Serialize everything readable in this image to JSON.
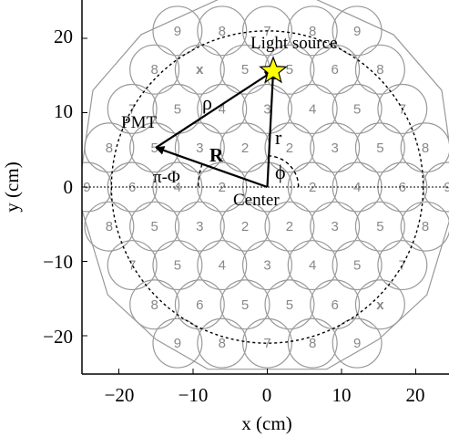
{
  "axes": {
    "xlabel": "x (cm)",
    "ylabel": "y (cm)",
    "xticks": [
      "−20",
      "−10",
      "0",
      "10",
      "20"
    ],
    "yticks": [
      "20",
      "10",
      "0",
      "−10",
      "−20"
    ]
  },
  "pmt_grid": {
    "pitch_cm": 7.0,
    "radius_cm": 3.3,
    "rows": [
      {
        "y": 21.0,
        "xs": [
          -12.1,
          -6.1,
          0.0,
          6.1,
          12.1
        ],
        "labels": [
          "9",
          "8",
          "7",
          "8",
          "9"
        ]
      },
      {
        "y": 15.8,
        "xs": [
          -15.2,
          -9.1,
          -3.0,
          3.0,
          9.1,
          15.2
        ],
        "labels": [
          "8",
          "x",
          "5",
          "5",
          "6",
          "8"
        ]
      },
      {
        "y": 10.5,
        "xs": [
          -18.2,
          -12.1,
          -6.1,
          0.0,
          6.1,
          12.1,
          18.2
        ],
        "labels": [
          "7",
          "5",
          "4",
          "3",
          "4",
          "5",
          "7"
        ]
      },
      {
        "y": 5.3,
        "xs": [
          -21.3,
          -15.2,
          -9.1,
          -3.0,
          3.0,
          9.1,
          15.2,
          21.3
        ],
        "labels": [
          "8",
          "5",
          "3",
          "2",
          "2",
          "3",
          "5",
          "8"
        ]
      },
      {
        "y": 0.0,
        "xs": [
          -24.3,
          -18.2,
          -12.1,
          -6.1,
          0.0,
          6.1,
          12.1,
          18.2,
          24.3
        ],
        "labels": [
          "9",
          "6",
          "4",
          "2",
          "",
          "2",
          "4",
          "6",
          "9"
        ]
      },
      {
        "y": -5.3,
        "xs": [
          -21.3,
          -15.2,
          -9.1,
          -3.0,
          3.0,
          9.1,
          15.2,
          21.3
        ],
        "labels": [
          "8",
          "5",
          "3",
          "2",
          "2",
          "3",
          "5",
          "8"
        ]
      },
      {
        "y": -10.5,
        "xs": [
          -18.2,
          -12.1,
          -6.1,
          0.0,
          6.1,
          12.1,
          18.2
        ],
        "labels": [
          "7",
          "5",
          "4",
          "3",
          "4",
          "5",
          "7"
        ]
      },
      {
        "y": -15.8,
        "xs": [
          -15.2,
          -9.1,
          -3.0,
          3.0,
          9.1,
          15.2
        ],
        "labels": [
          "8",
          "6",
          "5",
          "5",
          "6",
          "x"
        ]
      },
      {
        "y": -21.0,
        "xs": [
          -12.1,
          -6.1,
          0.0,
          6.1,
          12.1
        ],
        "labels": [
          "9",
          "8",
          "7",
          "8",
          "9"
        ]
      }
    ]
  },
  "outline_cm": [
    [
      -6,
      25.5
    ],
    [
      6,
      25.5
    ],
    [
      17,
      20.5
    ],
    [
      23.5,
      13
    ],
    [
      25,
      2.5
    ],
    [
      25,
      -3
    ],
    [
      21.5,
      -14.5
    ],
    [
      15,
      -20.5
    ],
    [
      8,
      -24.5
    ],
    [
      -8,
      -24.5
    ],
    [
      -15,
      -20.5
    ],
    [
      -21.5,
      -14.5
    ],
    [
      -25,
      -3
    ],
    [
      -25,
      2.5
    ],
    [
      -23.5,
      13
    ],
    [
      -17,
      20.5
    ]
  ],
  "dashed_circle_radius_cm": 21.0,
  "points": {
    "light_source": {
      "x": 0.8,
      "y": 15.6,
      "label": "Light source"
    },
    "pmt": {
      "x": -15.0,
      "y": 5.3,
      "label": "PMT"
    },
    "center": {
      "x": 0.0,
      "y": 0.0,
      "label": "Center"
    }
  },
  "vector_labels": {
    "rho": "ρ",
    "r": "r",
    "R": "R",
    "phi": "ϕ",
    "pi_minus_phi": "π-Φ"
  },
  "colors": {
    "pmt_outline": "#999999",
    "star_fill": "#ffff00",
    "arrow": "#000000"
  }
}
